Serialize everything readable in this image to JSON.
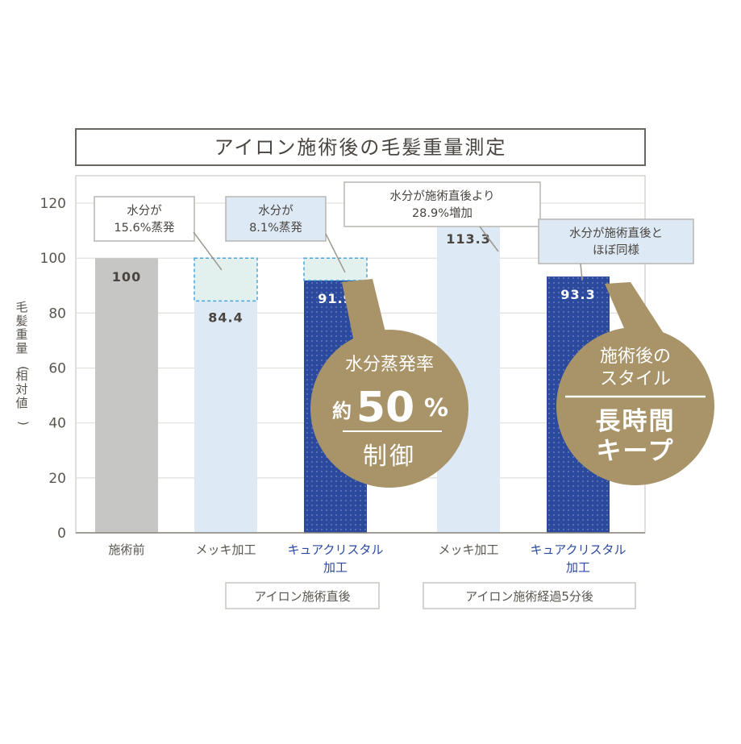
{
  "chart_data": {
    "type": "bar",
    "title": "アイロン施術後の毛髪重量測定",
    "ylabel": "毛髪重量(相対値)",
    "ylim": [
      0,
      130
    ],
    "yticks": [
      0,
      20,
      40,
      60,
      80,
      100,
      120
    ],
    "grid": true,
    "categories": [
      "施術前",
      "メッキ加工",
      "キュアクリスタル加工",
      "メッキ加工",
      "キュアクリスタル加工"
    ],
    "category_lines": [
      [
        "施術前"
      ],
      [
        "メッキ加工"
      ],
      [
        "キュアクリスタル",
        "加工"
      ],
      [
        "メッキ加工"
      ],
      [
        "キュアクリスタル",
        "加工"
      ]
    ],
    "values": [
      100,
      84.4,
      91.9,
      113.3,
      93.3
    ],
    "value_labels": [
      "100",
      "84.4",
      "91.9",
      "113.3",
      "93.3"
    ],
    "groups": [
      {
        "label": "アイロン施術直後",
        "categories": [
          1,
          2
        ]
      },
      {
        "label": "アイロン施術経過5分後",
        "categories": [
          3,
          4
        ]
      }
    ],
    "evaporated_from": [
      null,
      100,
      100,
      null,
      null
    ],
    "callouts": [
      {
        "bar": 1,
        "lines": [
          "水分が",
          "15.6%蒸発"
        ]
      },
      {
        "bar": 2,
        "lines": [
          "水分が",
          "8.1%蒸発"
        ]
      },
      {
        "bar": 3,
        "lines": [
          "水分が施術直後より",
          "28.9%増加"
        ]
      },
      {
        "bar": 4,
        "lines": [
          "水分が施術直後と",
          "ほぼ同様"
        ]
      }
    ],
    "badges": [
      {
        "bar": 2,
        "top": "水分蒸発率",
        "prefix": "約",
        "big": "50",
        "suffix": "%",
        "bottom": "制御"
      },
      {
        "bar": 4,
        "top": "施術後の",
        "sub": "スタイル",
        "bottom1": "長時間",
        "bottom2": "キープ"
      }
    ],
    "colors": {
      "baseline": "#c6c6c4",
      "plated": "#dde9f5",
      "crystal": "#2b4a9e",
      "evaporated": "#e3f1ee",
      "dashed": "#4aa6d8",
      "callout_fill": "#dde9f5",
      "badge": "#a89468",
      "category_highlight": "#2b4a9e",
      "text": "#5a554f"
    }
  }
}
